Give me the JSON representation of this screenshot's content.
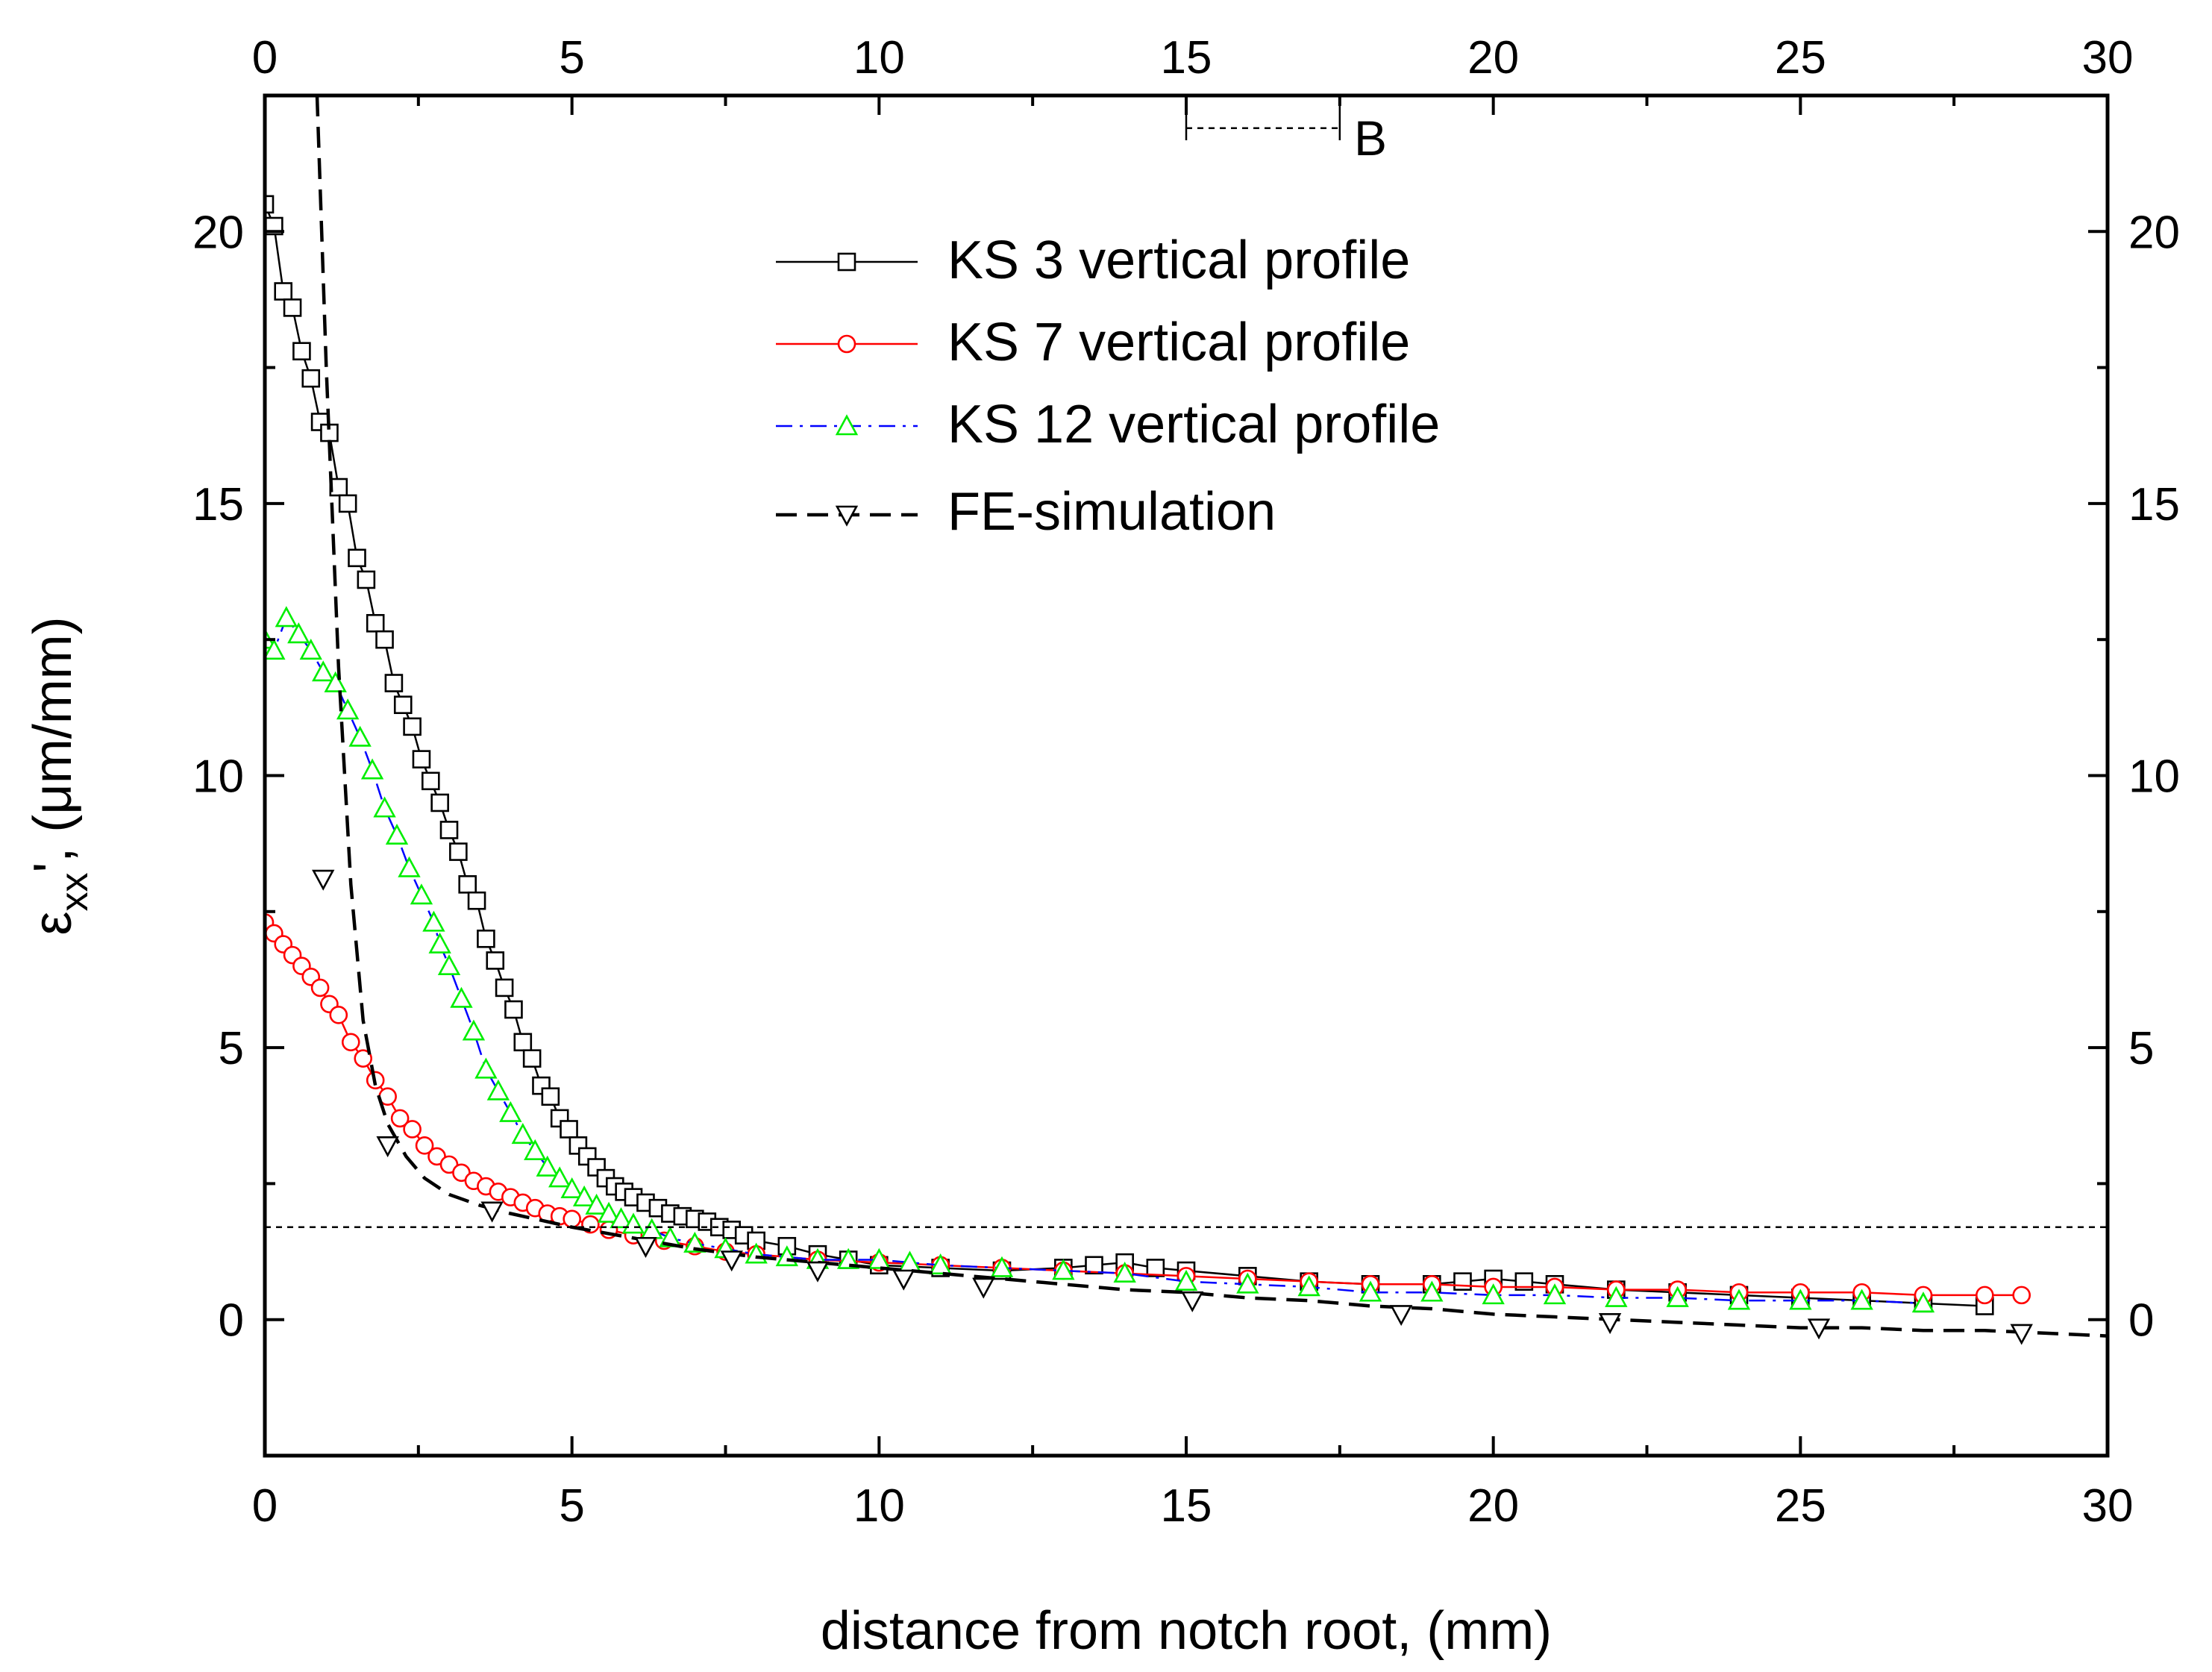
{
  "chart_data": {
    "type": "scatter",
    "xlabel": "distance from notch root, (mm)",
    "ylabel_main": "ε",
    "ylabel_sub": "xx",
    "ylabel_rest": "', (μm/mm)",
    "xlim": [
      0,
      30
    ],
    "ylim": [
      -2.5,
      22.5
    ],
    "x_ticks": [
      0,
      5,
      10,
      15,
      20,
      25,
      30
    ],
    "y_ticks": [
      0,
      5,
      10,
      15,
      20
    ],
    "x_tick_labels": [
      "0",
      "5",
      "10",
      "15",
      "20",
      "25",
      "30"
    ],
    "y_tick_labels": [
      "0",
      "5",
      "10",
      "15",
      "20"
    ],
    "grid": false,
    "legend_position": "top-center",
    "annotation": {
      "label": "B",
      "y": 21.9,
      "x_start": 15,
      "x_end": 17.5
    },
    "reference_line": {
      "y": 1.7
    },
    "series": [
      {
        "name": "KS 3 vertical profile",
        "marker": "square",
        "color": "#000000",
        "line_style": "solid",
        "x": [
          0.0,
          0.15,
          0.3,
          0.45,
          0.6,
          0.75,
          0.9,
          1.05,
          1.2,
          1.35,
          1.5,
          1.65,
          1.8,
          1.95,
          2.1,
          2.25,
          2.4,
          2.55,
          2.7,
          2.85,
          3.0,
          3.15,
          3.3,
          3.45,
          3.6,
          3.75,
          3.9,
          4.05,
          4.2,
          4.35,
          4.5,
          4.65,
          4.8,
          4.95,
          5.1,
          5.25,
          5.4,
          5.55,
          5.7,
          5.85,
          6.0,
          6.2,
          6.4,
          6.6,
          6.8,
          7.0,
          7.2,
          7.4,
          7.6,
          7.8,
          8.0,
          8.5,
          9.0,
          9.5,
          10.0,
          11.0,
          12.0,
          13.0,
          13.5,
          14.0,
          14.5,
          15.0,
          16.0,
          17.0,
          18.0,
          19.0,
          19.5,
          20.0,
          20.5,
          21.0,
          22.0,
          23.0,
          24.0,
          25.0,
          26.0,
          27.0,
          28.0
        ],
        "y": [
          20.5,
          20.1,
          18.9,
          18.6,
          17.8,
          17.3,
          16.5,
          16.3,
          15.3,
          15.0,
          14.0,
          13.6,
          12.8,
          12.5,
          11.7,
          11.3,
          10.9,
          10.3,
          9.9,
          9.5,
          9.0,
          8.6,
          8.0,
          7.7,
          7.0,
          6.6,
          6.1,
          5.7,
          5.1,
          4.8,
          4.3,
          4.1,
          3.7,
          3.5,
          3.2,
          3.0,
          2.8,
          2.6,
          2.45,
          2.35,
          2.25,
          2.15,
          2.05,
          1.95,
          1.9,
          1.85,
          1.8,
          1.7,
          1.65,
          1.55,
          1.45,
          1.35,
          1.2,
          1.1,
          1.0,
          0.95,
          0.9,
          0.95,
          1.0,
          1.05,
          0.95,
          0.9,
          0.8,
          0.7,
          0.65,
          0.65,
          0.7,
          0.75,
          0.7,
          0.65,
          0.55,
          0.5,
          0.45,
          0.4,
          0.35,
          0.3,
          0.25
        ]
      },
      {
        "name": "KS 7  vertical profile",
        "marker": "circle",
        "color": "#ff0000",
        "line_style": "solid",
        "x": [
          0.0,
          0.15,
          0.3,
          0.45,
          0.6,
          0.75,
          0.9,
          1.05,
          1.2,
          1.4,
          1.6,
          1.8,
          2.0,
          2.2,
          2.4,
          2.6,
          2.8,
          3.0,
          3.2,
          3.4,
          3.6,
          3.8,
          4.0,
          4.2,
          4.4,
          4.6,
          4.8,
          5.0,
          5.3,
          5.6,
          6.0,
          6.5,
          7.0,
          7.5,
          8.0,
          9.0,
          10.0,
          11.0,
          12.0,
          13.0,
          14.0,
          15.0,
          16.0,
          17.0,
          18.0,
          19.0,
          20.0,
          21.0,
          22.0,
          23.0,
          24.0,
          25.0,
          26.0,
          27.0,
          28.0,
          28.6
        ],
        "y": [
          7.3,
          7.1,
          6.9,
          6.7,
          6.5,
          6.3,
          6.1,
          5.8,
          5.6,
          5.1,
          4.8,
          4.4,
          4.1,
          3.7,
          3.5,
          3.2,
          3.0,
          2.85,
          2.7,
          2.55,
          2.45,
          2.35,
          2.25,
          2.15,
          2.05,
          1.95,
          1.9,
          1.85,
          1.75,
          1.65,
          1.55,
          1.45,
          1.35,
          1.25,
          1.2,
          1.1,
          1.05,
          1.0,
          0.95,
          0.9,
          0.85,
          0.8,
          0.75,
          0.7,
          0.65,
          0.65,
          0.6,
          0.6,
          0.55,
          0.55,
          0.5,
          0.5,
          0.5,
          0.45,
          0.45,
          0.45
        ]
      },
      {
        "name": "KS 12  vertical profile",
        "marker": "triangle-up",
        "color": "#00ee00",
        "line_color": "#0000ff",
        "line_style": "dashdot",
        "x": [
          0.0,
          0.15,
          0.35,
          0.55,
          0.75,
          0.95,
          1.15,
          1.35,
          1.55,
          1.75,
          1.95,
          2.15,
          2.35,
          2.55,
          2.75,
          2.85,
          3.0,
          3.2,
          3.4,
          3.6,
          3.8,
          4.0,
          4.2,
          4.4,
          4.6,
          4.8,
          5.0,
          5.2,
          5.4,
          5.6,
          5.8,
          6.0,
          6.3,
          6.6,
          7.0,
          7.5,
          8.0,
          8.5,
          9.0,
          9.5,
          10.0,
          10.5,
          11.0,
          12.0,
          13.0,
          14.0,
          15.0,
          16.0,
          17.0,
          18.0,
          19.0,
          20.0,
          21.0,
          22.0,
          23.0,
          24.0,
          25.0,
          26.0,
          27.0
        ],
        "y": [
          12.5,
          12.3,
          12.9,
          12.6,
          12.3,
          11.9,
          11.7,
          11.2,
          10.7,
          10.1,
          9.4,
          8.9,
          8.3,
          7.8,
          7.3,
          6.9,
          6.5,
          5.9,
          5.3,
          4.6,
          4.2,
          3.8,
          3.4,
          3.1,
          2.8,
          2.6,
          2.4,
          2.25,
          2.1,
          1.95,
          1.85,
          1.75,
          1.65,
          1.5,
          1.4,
          1.3,
          1.2,
          1.15,
          1.1,
          1.1,
          1.1,
          1.05,
          1.0,
          0.95,
          0.9,
          0.85,
          0.7,
          0.65,
          0.6,
          0.5,
          0.5,
          0.45,
          0.45,
          0.4,
          0.4,
          0.35,
          0.35,
          0.35,
          0.3
        ]
      },
      {
        "name": "FE-simulation",
        "marker": "triangle-down",
        "color": "#000000",
        "line_style": "dashed",
        "x": [
          0.85,
          1.0,
          1.2,
          1.4,
          1.6,
          1.8,
          2.0,
          2.3,
          2.6,
          3.0,
          3.5,
          4.0,
          5.0,
          6.0,
          7.0,
          8.0,
          9.0,
          10.0,
          11.0,
          12.0,
          13.0,
          14.0,
          15.0,
          16.0,
          17.0,
          18.0,
          19.0,
          20.0,
          21.0,
          22.0,
          23.0,
          24.0,
          25.0,
          26.0,
          27.0,
          28.0,
          29.0,
          30.0
        ],
        "y": [
          22.5,
          17.5,
          12.0,
          8.0,
          5.5,
          4.3,
          3.6,
          3.0,
          2.6,
          2.3,
          2.1,
          1.95,
          1.7,
          1.5,
          1.3,
          1.15,
          1.05,
          0.95,
          0.85,
          0.75,
          0.65,
          0.55,
          0.5,
          0.4,
          0.35,
          0.25,
          0.2,
          0.1,
          0.05,
          0.0,
          -0.05,
          -0.1,
          -0.15,
          -0.15,
          -0.2,
          -0.2,
          -0.25,
          -0.3
        ],
        "marker_x": [
          0.95,
          2.0,
          3.7,
          6.2,
          7.6,
          9.0,
          10.4,
          11.7,
          15.1,
          18.5,
          21.9,
          25.3,
          28.6
        ],
        "marker_y": [
          8.1,
          3.2,
          2.0,
          1.35,
          1.1,
          0.9,
          0.75,
          0.6,
          0.35,
          0.1,
          -0.05,
          -0.15,
          -0.25
        ]
      }
    ]
  }
}
